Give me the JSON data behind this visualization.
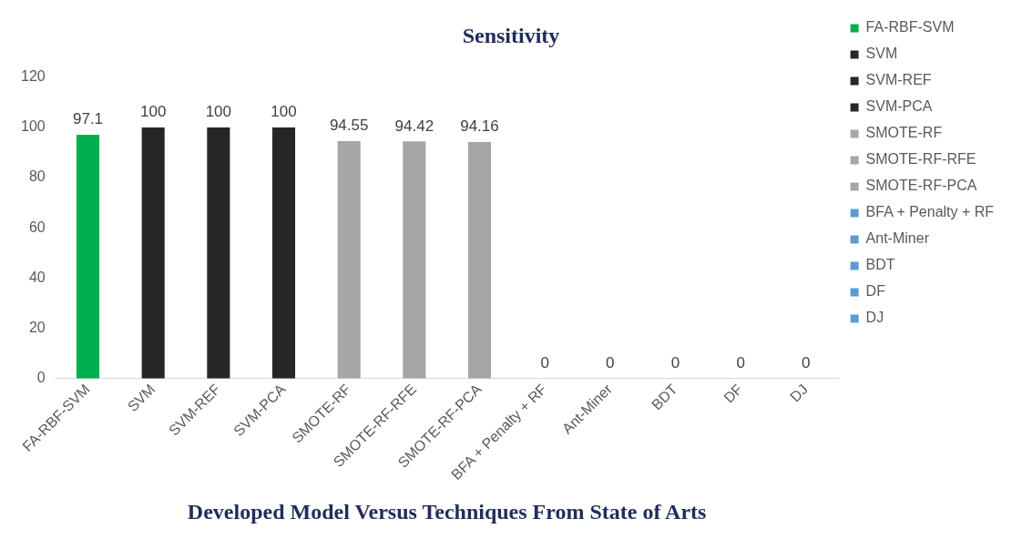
{
  "chart_data": {
    "type": "bar",
    "title": "Sensitivity",
    "xlabel": "Developed Model Versus Techniques From State of Arts",
    "categories": [
      "FA-RBF-SVM",
      "SVM",
      "SVM-REF",
      "SVM-PCA",
      "SMOTE-RF",
      "SMOTE-RF-RFE",
      "SMOTE-RF-PCA",
      "BFA + Penalty + RF",
      "Ant-Miner",
      "BDT",
      "DF",
      "DJ"
    ],
    "series": [
      {
        "name": "FA-RBF-SVM",
        "color": "#00b050",
        "values": [
          97.1,
          null,
          null,
          null,
          null,
          null,
          null,
          null,
          null,
          null,
          null,
          null
        ]
      },
      {
        "name": "SVM",
        "color": "#262626",
        "values": [
          null,
          100,
          null,
          null,
          null,
          null,
          null,
          null,
          null,
          null,
          null,
          null
        ]
      },
      {
        "name": "SVM-REF",
        "color": "#262626",
        "values": [
          null,
          null,
          100,
          null,
          null,
          null,
          null,
          null,
          null,
          null,
          null,
          null
        ]
      },
      {
        "name": "SVM-PCA",
        "color": "#262626",
        "values": [
          null,
          null,
          null,
          100,
          null,
          null,
          null,
          null,
          null,
          null,
          null,
          null
        ]
      },
      {
        "name": "SMOTE-RF",
        "color": "#a6a6a6",
        "values": [
          null,
          null,
          null,
          null,
          94.55,
          null,
          null,
          null,
          null,
          null,
          null,
          null
        ]
      },
      {
        "name": "SMOTE-RF-RFE",
        "color": "#a6a6a6",
        "values": [
          null,
          null,
          null,
          null,
          null,
          94.42,
          null,
          null,
          null,
          null,
          null,
          null
        ]
      },
      {
        "name": "SMOTE-RF-PCA",
        "color": "#a6a6a6",
        "values": [
          null,
          null,
          null,
          null,
          null,
          null,
          94.16,
          null,
          null,
          null,
          null,
          null
        ]
      },
      {
        "name": "BFA + Penalty + RF",
        "color": "#5b9bd5",
        "values": [
          null,
          null,
          null,
          null,
          null,
          null,
          null,
          0,
          null,
          null,
          null,
          null
        ]
      },
      {
        "name": "Ant-Miner",
        "color": "#5b9bd5",
        "values": [
          null,
          null,
          null,
          null,
          null,
          null,
          null,
          null,
          0,
          null,
          null,
          null
        ]
      },
      {
        "name": "BDT",
        "color": "#5b9bd5",
        "values": [
          null,
          null,
          null,
          null,
          null,
          null,
          null,
          null,
          null,
          0,
          null,
          null
        ]
      },
      {
        "name": "DF",
        "color": "#5b9bd5",
        "values": [
          null,
          null,
          null,
          null,
          null,
          null,
          null,
          null,
          null,
          null,
          0,
          null
        ]
      },
      {
        "name": "DJ",
        "color": "#5b9bd5",
        "values": [
          null,
          null,
          null,
          null,
          null,
          null,
          null,
          null,
          null,
          null,
          null,
          0
        ]
      }
    ],
    "ylim": [
      0,
      120
    ],
    "yticks": [
      0,
      20,
      40,
      60,
      80,
      100,
      120
    ],
    "grid": false,
    "legend": "right",
    "data_labels": true
  }
}
